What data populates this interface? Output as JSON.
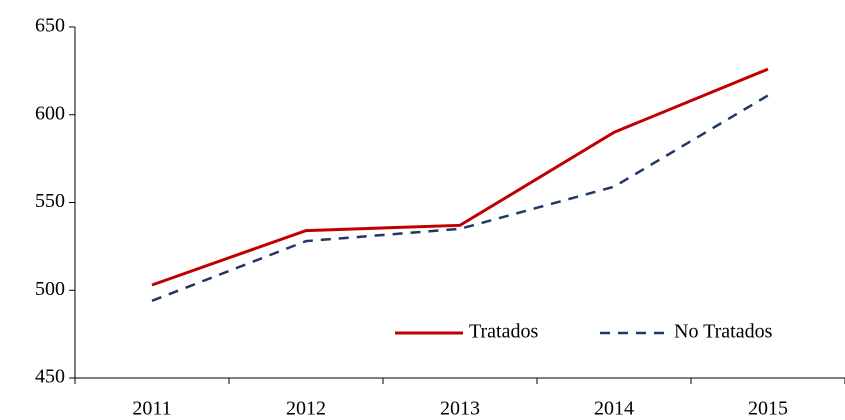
{
  "chart_data": {
    "type": "line",
    "categories": [
      "2011",
      "2012",
      "2013",
      "2014",
      "2015"
    ],
    "series": [
      {
        "name": "Tratados",
        "color": "#c00000",
        "dash": false,
        "values": [
          503,
          534,
          537,
          590,
          626
        ]
      },
      {
        "name": "No Tratados",
        "color": "#1f3864",
        "dash": true,
        "values": [
          494,
          528,
          535,
          559,
          611
        ]
      }
    ],
    "ylim": [
      450,
      650
    ],
    "yticks": [
      450,
      500,
      550,
      600,
      650
    ],
    "grid": false,
    "legend": "lower right"
  }
}
